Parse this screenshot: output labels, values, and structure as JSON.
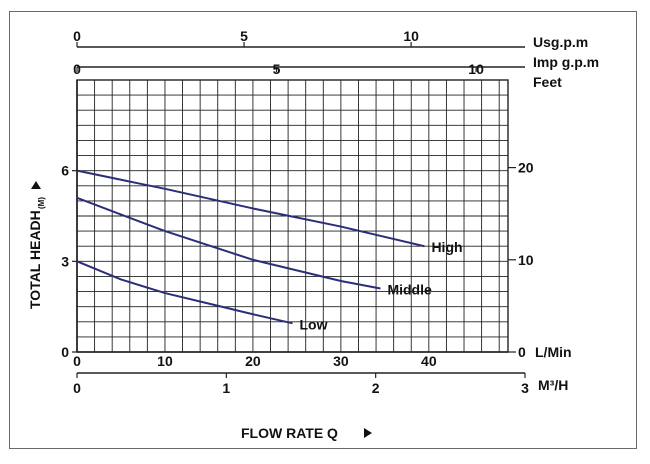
{
  "chart_data": {
    "type": "line",
    "left_axis": {
      "label": "TOTAL HEADH",
      "label_sub": "(M)",
      "ticks": [
        0,
        3,
        6
      ],
      "range": [
        0,
        9
      ]
    },
    "right_axis": {
      "label": "Feet",
      "ticks": [
        0,
        10,
        20
      ],
      "ticks_text": [
        "0",
        "10",
        "20"
      ],
      "unit_at_zero": "L/Min",
      "range_ft": [
        0,
        29.5
      ]
    },
    "top_axis_usg": {
      "label": "Usg.p.m",
      "ticks": [
        0,
        5,
        10
      ]
    },
    "top_axis_imp": {
      "label": "Imp g.p.m",
      "ticks": [
        0,
        5,
        10
      ]
    },
    "bottom_axis_lmin": {
      "ticks": [
        0,
        10,
        20,
        30,
        40
      ],
      "range": [
        0,
        49
      ]
    },
    "bottom_axis_m3h": {
      "label": "M³/H",
      "ticks": [
        0,
        1,
        2,
        3
      ],
      "range": [
        0,
        3
      ]
    },
    "xlabel": "FLOW RATE Q",
    "grid": true,
    "series": [
      {
        "name": "High",
        "x": [
          0,
          10,
          20,
          30,
          39.5
        ],
        "y": [
          6.0,
          5.4,
          4.75,
          4.15,
          3.5
        ]
      },
      {
        "name": "Middle",
        "x": [
          0,
          10,
          20,
          30,
          34.5
        ],
        "y": [
          5.1,
          4.0,
          3.05,
          2.35,
          2.1
        ]
      },
      {
        "name": "Low",
        "x": [
          0,
          5,
          10,
          15,
          20,
          24.5
        ],
        "y": [
          3.0,
          2.4,
          1.95,
          1.6,
          1.25,
          0.95
        ]
      }
    ],
    "colors": {
      "line": "#2b2f78",
      "grid": "#222222",
      "text": "#111111"
    }
  }
}
